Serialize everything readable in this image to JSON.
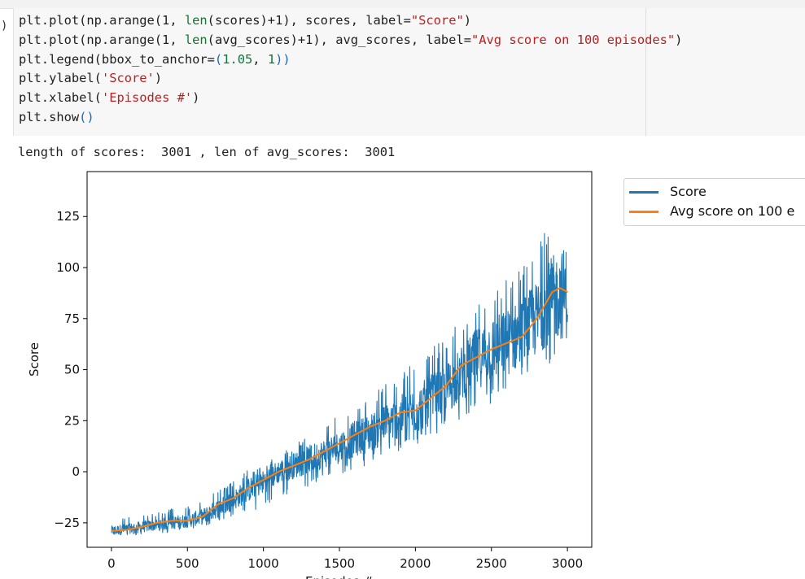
{
  "code_cell": {
    "prompt": ")",
    "lines": [
      [
        {
          "t": "plt.plot(np.arange(1, ",
          "c": ""
        },
        {
          "t": "len",
          "c": "builtin"
        },
        {
          "t": "(scores)+1), scores, label=",
          "c": ""
        },
        {
          "t": "\"Score\"",
          "c": "str"
        },
        {
          "t": ")",
          "c": ""
        }
      ],
      [
        {
          "t": "plt.plot(np.arange(1, ",
          "c": ""
        },
        {
          "t": "len",
          "c": "builtin"
        },
        {
          "t": "(avg_scores)+1), avg_scores, label=",
          "c": ""
        },
        {
          "t": "\"Avg score on 100 episodes\"",
          "c": "str"
        },
        {
          "t": ")",
          "c": ""
        }
      ],
      [
        {
          "t": "plt.legend(bbox_to_anchor=",
          "c": ""
        },
        {
          "t": "(",
          "c": "paren"
        },
        {
          "t": "1.05",
          "c": "num"
        },
        {
          "t": ", ",
          "c": ""
        },
        {
          "t": "1",
          "c": "num"
        },
        {
          "t": "))",
          "c": "paren"
        }
      ],
      [
        {
          "t": "plt.ylabel(",
          "c": ""
        },
        {
          "t": "'Score'",
          "c": "str"
        },
        {
          "t": ")",
          "c": ""
        }
      ],
      [
        {
          "t": "plt.xlabel(",
          "c": ""
        },
        {
          "t": "'Episodes #'",
          "c": "str"
        },
        {
          "t": ")",
          "c": ""
        }
      ],
      [
        {
          "t": "plt.show",
          "c": ""
        },
        {
          "t": "()",
          "c": "paren"
        }
      ]
    ]
  },
  "output": {
    "text": "length of scores:  3001 , len of avg_scores:  3001"
  },
  "chart_data": {
    "type": "line",
    "title": "",
    "xlabel": "Episodes #",
    "ylabel": "Score",
    "xlim": [
      -160,
      3160
    ],
    "ylim": [
      -37,
      147
    ],
    "xticks": [
      0,
      500,
      1000,
      1500,
      2000,
      2500,
      3000
    ],
    "yticks": [
      -25,
      0,
      25,
      50,
      75,
      100,
      125
    ],
    "xtick_labels": [
      "0",
      "500",
      "1000",
      "1500",
      "2000",
      "2500",
      "3000"
    ],
    "ytick_labels": [
      "−25",
      "0",
      "25",
      "50",
      "75",
      "100",
      "125"
    ],
    "legend": {
      "placement": "outside-top-right",
      "entries": [
        "Score",
        "Avg score on 100 e"
      ]
    },
    "colors": {
      "score": "#1f77b4",
      "avg": "#ff7f0e"
    },
    "series": [
      {
        "name": "Score",
        "x": [
          1,
          100,
          200,
          300,
          400,
          500,
          600,
          700,
          800,
          900,
          1000,
          1100,
          1200,
          1300,
          1400,
          1500,
          1600,
          1700,
          1800,
          1900,
          2000,
          2100,
          2200,
          2300,
          2400,
          2500,
          2600,
          2700,
          2800,
          2900,
          3001
        ],
        "y": [
          -29,
          -28,
          -27,
          -26,
          -25,
          -24,
          -22,
          -18,
          -14,
          -9,
          -5,
          0,
          3,
          6,
          9,
          12,
          16,
          19,
          23,
          27,
          30,
          35,
          40,
          48,
          55,
          60,
          63,
          68,
          75,
          85,
          88
        ],
        "band_low": [
          -31,
          -31,
          -31,
          -30,
          -30,
          -29,
          -28,
          -25,
          -23,
          -20,
          -17,
          -13,
          -10,
          -7,
          -4,
          -1,
          1,
          4,
          7,
          10,
          13,
          15,
          20,
          26,
          30,
          33,
          36,
          40,
          44,
          50,
          54
        ],
        "band_high": [
          -22,
          -22,
          -21,
          -20,
          -18,
          -17,
          -14,
          -9,
          -5,
          1,
          4,
          8,
          13,
          18,
          22,
          28,
          33,
          38,
          43,
          48,
          55,
          60,
          66,
          74,
          84,
          90,
          95,
          102,
          110,
          125,
          138
        ]
      },
      {
        "name": "Avg score on 100 episodes",
        "x": [
          1,
          100,
          200,
          300,
          400,
          500,
          600,
          700,
          800,
          900,
          1000,
          1100,
          1200,
          1300,
          1400,
          1500,
          1600,
          1700,
          1800,
          1900,
          2000,
          2100,
          2200,
          2300,
          2400,
          2500,
          2600,
          2700,
          2800,
          2900,
          2950,
          3001
        ],
        "y": [
          -29,
          -28.5,
          -27,
          -25,
          -24,
          -24,
          -22,
          -16,
          -13,
          -8,
          -4,
          0,
          3,
          6,
          10,
          14,
          18,
          22,
          25,
          29,
          30,
          36,
          42,
          52,
          56,
          60,
          63,
          66,
          75,
          88,
          90,
          88
        ]
      }
    ]
  }
}
